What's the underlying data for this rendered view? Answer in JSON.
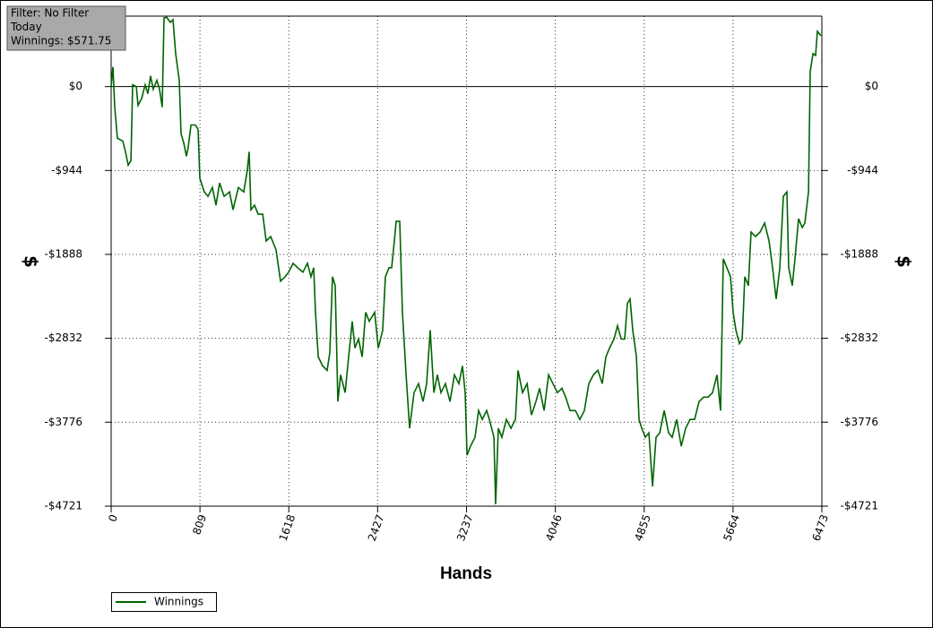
{
  "chart_data": {
    "type": "line",
    "annotations": [
      "Filter: No Filter",
      "Today",
      "Winnings: $571.75"
    ],
    "x_label": "Hands",
    "y_label": "$",
    "y2_label": "$",
    "xlim": [
      0,
      6473
    ],
    "xticks": [
      0,
      809,
      1618,
      2427,
      3237,
      4046,
      4855,
      5664,
      6473
    ],
    "ylim": [
      -4721,
      793
    ],
    "yticks": [
      {
        "value": -4721,
        "label": "-$4721"
      },
      {
        "value": -3776,
        "label": "-$3776"
      },
      {
        "value": -2832,
        "label": "-$2832"
      },
      {
        "value": -1888,
        "label": "-$1888"
      },
      {
        "value": -944,
        "label": "-$944"
      },
      {
        "value": 0,
        "label": "$0"
      }
    ],
    "y2lim": [
      -4721,
      793
    ],
    "y2ticks": [
      {
        "value": -4721,
        "label": "-$4721"
      },
      {
        "value": -3776,
        "label": "-$3776"
      },
      {
        "value": -2832,
        "label": "-$2832"
      },
      {
        "value": -1888,
        "label": "-$1888"
      },
      {
        "value": -944,
        "label": "-$944"
      },
      {
        "value": 0,
        "label": "$0"
      }
    ],
    "grid": true,
    "legend": "bottom-left",
    "x": [
      0,
      16,
      33,
      57,
      106,
      131,
      155,
      180,
      196,
      229,
      245,
      278,
      310,
      335,
      359,
      384,
      416,
      441,
      465,
      482,
      506,
      539,
      563,
      588,
      620,
      637,
      661,
      686,
      702,
      727,
      767,
      792,
      808,
      849,
      882,
      922,
      955,
      988,
      1029,
      1078,
      1110,
      1159,
      1208,
      1241,
      1257,
      1273,
      1306,
      1339,
      1380,
      1412,
      1453,
      1502,
      1543,
      1584,
      1616,
      1657,
      1698,
      1747,
      1788,
      1820,
      1845,
      1861,
      1886,
      1926,
      1967,
      1992,
      2016,
      2041,
      2065,
      2090,
      2131,
      2163,
      2196,
      2220,
      2253,
      2286,
      2318,
      2351,
      2400,
      2433,
      2473,
      2498,
      2531,
      2555,
      2579,
      2596,
      2628,
      2653,
      2686,
      2718,
      2759,
      2800,
      2841,
      2873,
      2906,
      2939,
      2971,
      3004,
      3045,
      3086,
      3126,
      3167,
      3200,
      3224,
      3241,
      3273,
      3314,
      3347,
      3380,
      3420,
      3445,
      3486,
      3502,
      3526,
      3559,
      3600,
      3641,
      3682,
      3706,
      3747,
      3788,
      3828,
      3869,
      3902,
      3943,
      3984,
      4024,
      4065,
      4106,
      4139,
      4180,
      4228,
      4269,
      4310,
      4351,
      4392,
      4433,
      4473,
      4506,
      4539,
      4580,
      4612,
      4645,
      4677,
      4702,
      4726,
      4751,
      4784,
      4808,
      4833,
      4865,
      4898,
      4931,
      4963,
      4996,
      5037,
      5077,
      5110,
      5151,
      5192,
      5232,
      5273,
      5314,
      5355,
      5396,
      5437,
      5477,
      5518,
      5551,
      5575,
      5608,
      5641,
      5665,
      5690,
      5722,
      5747,
      5771,
      5804,
      5828,
      5869,
      5910,
      5951,
      5992,
      6024,
      6057,
      6090,
      6122,
      6155,
      6171,
      6204,
      6228,
      6261,
      6294,
      6318,
      6351,
      6367,
      6392,
      6416,
      6432,
      6465
    ],
    "series": [
      {
        "name": "Winnings",
        "color": "#006400",
        "values": [
          0,
          221,
          -231,
          -582,
          -612,
          -733,
          -883,
          -833,
          20,
          0,
          -211,
          -131,
          20,
          -80,
          120,
          -30,
          70,
          -30,
          -231,
          773,
          780,
          723,
          753,
          371,
          70,
          -532,
          -633,
          -783,
          -683,
          -432,
          -432,
          -482,
          -1034,
          -1185,
          -1235,
          -1135,
          -1335,
          -1084,
          -1235,
          -1185,
          -1386,
          -1135,
          -1185,
          -934,
          -733,
          -1386,
          -1335,
          -1436,
          -1436,
          -1737,
          -1687,
          -1837,
          -2189,
          -2139,
          -2088,
          -1988,
          -2038,
          -2088,
          -1988,
          -2139,
          -2038,
          -2540,
          -3042,
          -3143,
          -3193,
          -2992,
          -2139,
          -2239,
          -3544,
          -3243,
          -3444,
          -3042,
          -2641,
          -2942,
          -2841,
          -3042,
          -2540,
          -2641,
          -2540,
          -2942,
          -2741,
          -2139,
          -2038,
          -2038,
          -1737,
          -1516,
          -1516,
          -2540,
          -3243,
          -3845,
          -3444,
          -3343,
          -3544,
          -3343,
          -2741,
          -3444,
          -3243,
          -3444,
          -3343,
          -3544,
          -3243,
          -3343,
          -3143,
          -3444,
          -4147,
          -4046,
          -3946,
          -3645,
          -3745,
          -3645,
          -3745,
          -3946,
          -4700,
          -3845,
          -3946,
          -3745,
          -3845,
          -3745,
          -3193,
          -3444,
          -3343,
          -3695,
          -3544,
          -3394,
          -3645,
          -3243,
          -3343,
          -3444,
          -3394,
          -3494,
          -3645,
          -3645,
          -3745,
          -3645,
          -3343,
          -3243,
          -3193,
          -3343,
          -3042,
          -2942,
          -2841,
          -2691,
          -2841,
          -2841,
          -2440,
          -2390,
          -2741,
          -3042,
          -3745,
          -3845,
          -3946,
          -3896,
          -4498,
          -3946,
          -3896,
          -3645,
          -3896,
          -3946,
          -3745,
          -4046,
          -3845,
          -3745,
          -3745,
          -3544,
          -3494,
          -3494,
          -3444,
          -3243,
          -3645,
          -1938,
          -2038,
          -2139,
          -2540,
          -2741,
          -2892,
          -2841,
          -2139,
          -2239,
          -1637,
          -1687,
          -1637,
          -1536,
          -1737,
          -2038,
          -2390,
          -2038,
          -1235,
          -1185,
          -2038,
          -2239,
          -1938,
          -1486,
          -1586,
          -1536,
          -1185,
          171,
          371,
          351,
          622,
          571.75
        ]
      }
    ]
  }
}
